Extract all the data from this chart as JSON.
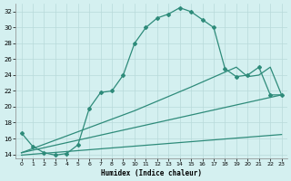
{
  "title": "",
  "xlabel": "Humidex (Indice chaleur)",
  "bg_color": "#d4f0f0",
  "line_color": "#2e8b7a",
  "grid_color": "#b8dada",
  "xlim": [
    -0.5,
    23.5
  ],
  "ylim": [
    13.5,
    33
  ],
  "yticks": [
    14,
    16,
    18,
    20,
    22,
    24,
    26,
    28,
    30,
    32
  ],
  "xticks": [
    0,
    1,
    2,
    3,
    4,
    5,
    6,
    7,
    8,
    9,
    10,
    11,
    12,
    13,
    14,
    15,
    16,
    17,
    18,
    19,
    20,
    21,
    22,
    23
  ],
  "line1_x": [
    0,
    1,
    2,
    3,
    4,
    5,
    6,
    7,
    8,
    9,
    10,
    11,
    12,
    13,
    14,
    15,
    16,
    17,
    18,
    19,
    20,
    21,
    22,
    23
  ],
  "line1_y": [
    16.7,
    15.0,
    14.2,
    13.9,
    14.1,
    15.2,
    19.8,
    21.8,
    22.0,
    24.0,
    28.0,
    30.0,
    31.2,
    31.7,
    32.5,
    32.0,
    31.0,
    30.0,
    24.8,
    23.8,
    24.0,
    25.0,
    21.5,
    21.5
  ],
  "line2_x": [
    0,
    10,
    15,
    19,
    20,
    21,
    22,
    23
  ],
  "line2_y": [
    14.2,
    19.5,
    22.5,
    25.0,
    23.8,
    24.0,
    25.0,
    21.5
  ],
  "line3_x": [
    0,
    23
  ],
  "line3_y": [
    14.2,
    21.5
  ],
  "line4_x": [
    0,
    23
  ],
  "line4_y": [
    13.9,
    16.5
  ]
}
